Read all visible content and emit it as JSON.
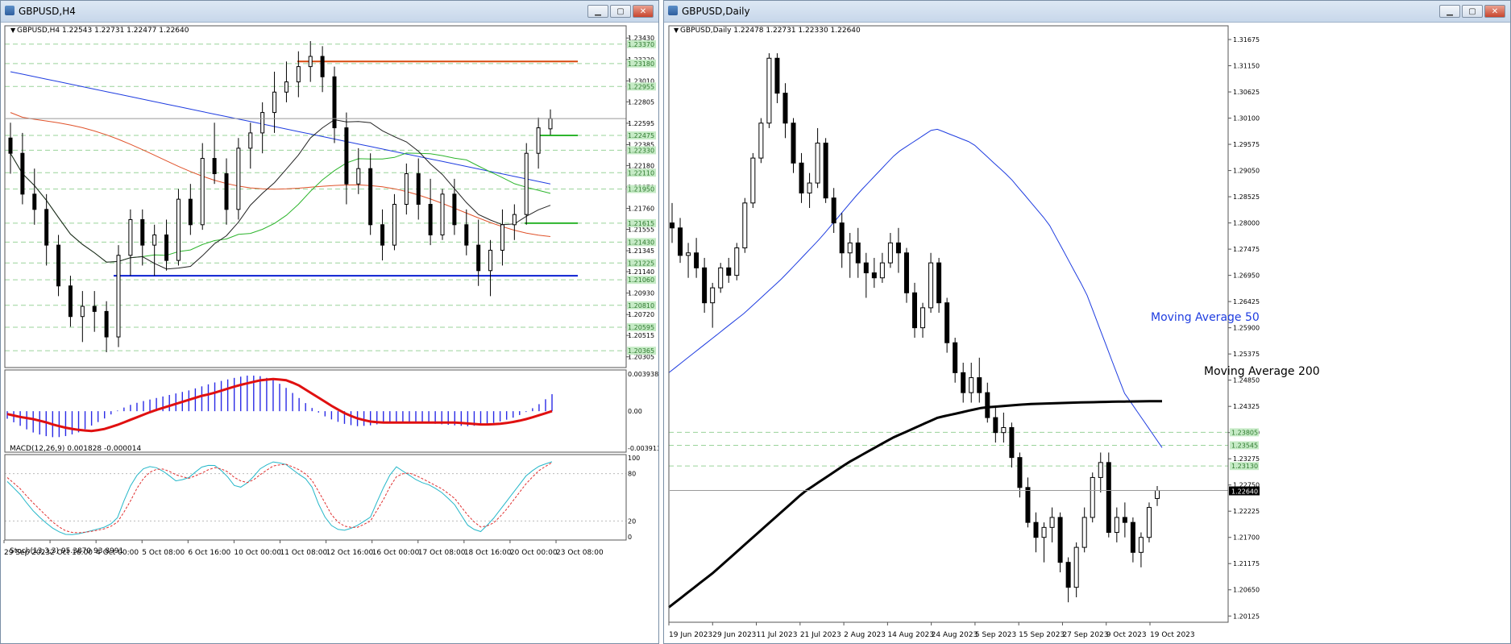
{
  "left": {
    "title": "GBPUSD,H4",
    "info": "GBPUSD,H4  1.22543 1.22731 1.22477 1.22640",
    "price_ticks": [
      "1.23430",
      "1.23220",
      "1.23010",
      "1.22805",
      "1.22595",
      "1.22385",
      "1.22180",
      "1.21970",
      "1.21760",
      "1.21555",
      "1.21345",
      "1.21140",
      "1.20930",
      "1.20720",
      "1.20515",
      "1.20305"
    ],
    "level_labels": [
      "1.23370",
      "1.23180",
      "1.22955",
      "1.22475",
      "1.22330",
      "1.22110",
      "1.21950",
      "1.21615",
      "1.21430",
      "1.21225",
      "1.21060",
      "1.20810",
      "1.20595",
      "1.20365"
    ],
    "time_ticks": [
      "29 Sep 2023",
      "2 Oct 16:00",
      "4 Oct 00:00",
      "5 Oct 08:00",
      "6 Oct 16:00",
      "10 Oct 00:00",
      "11 Oct 08:00",
      "12 Oct 16:00",
      "16 Oct 00:00",
      "17 Oct 08:00",
      "18 Oct 16:00",
      "20 Oct 00:00",
      "23 Oct 08:00"
    ],
    "macd_label": "MACD(12,26,9) 0.001828 -0.000014",
    "macd_ticks": [
      "0.003938",
      "0.00",
      "-0.003913"
    ],
    "stoch_label": "Stoch(13,3,3) 95.3870 93.8991",
    "stoch_ticks": [
      "100",
      "80",
      "20",
      "0"
    ]
  },
  "right": {
    "title": "GBPUSD,Daily",
    "info": "GBPUSD,Daily  1.22478 1.22731 1.22330 1.22640",
    "price_ticks": [
      "1.31675",
      "1.31150",
      "1.30625",
      "1.30100",
      "1.29575",
      "1.29050",
      "1.28525",
      "1.28000",
      "1.27475",
      "1.26950",
      "1.26425",
      "1.25900",
      "1.25375",
      "1.24850",
      "1.24325",
      "1.23800",
      "1.23275",
      "1.22750",
      "1.22225",
      "1.21700",
      "1.21175",
      "1.20650",
      "1.20125"
    ],
    "level_labels": [
      "1.23805",
      "1.23545",
      "1.23130"
    ],
    "current_price": "1.22640",
    "time_ticks": [
      "19 Jun 2023",
      "29 Jun 2023",
      "11 Jul 2023",
      "21 Jul 2023",
      "2 Aug 2023",
      "14 Aug 2023",
      "24 Aug 2023",
      "5 Sep 2023",
      "15 Sep 2023",
      "27 Sep 2023",
      "9 Oct 2023",
      "19 Oct 2023"
    ],
    "annotations": {
      "ma50": "Moving Average 50",
      "ma200": "Moving Average 200"
    }
  },
  "window_buttons": {
    "minimize": "▁",
    "restore": "▢",
    "close": "✕"
  },
  "colors": {
    "ma_blue": "#1f3de0",
    "ma_red": "#e0522a",
    "ma_green": "#2db52d",
    "resistance": "#d9480f",
    "support": "#0a1fd1",
    "grid": "#9ad39a",
    "macd_hist": "#2a2ae6",
    "macd_signal": "#e01010"
  },
  "chart_data": [
    {
      "type": "candlestick",
      "title": "GBPUSD,H4",
      "ylim": [
        1.202,
        1.2355
      ],
      "horizontal_lines": [
        {
          "price": 1.232,
          "color": "#d9480f"
        },
        {
          "price": 1.211,
          "color": "#0a1fd1"
        },
        {
          "price": 1.22475,
          "color": "#2db52d"
        },
        {
          "price": 1.21615,
          "color": "#2db52d"
        }
      ],
      "candles_ohlc": [
        [
          1.2245,
          1.226,
          1.221,
          1.223
        ],
        [
          1.223,
          1.225,
          1.218,
          1.219
        ],
        [
          1.219,
          1.2215,
          1.216,
          1.2175
        ],
        [
          1.2175,
          1.219,
          1.212,
          1.214
        ],
        [
          1.214,
          1.215,
          1.209,
          1.21
        ],
        [
          1.21,
          1.211,
          1.206,
          1.207
        ],
        [
          1.207,
          1.2095,
          1.2045,
          1.208
        ],
        [
          1.208,
          1.2095,
          1.2055,
          1.2075
        ],
        [
          1.2075,
          1.2085,
          1.2035,
          1.205
        ],
        [
          1.205,
          1.214,
          1.204,
          1.213
        ],
        [
          1.213,
          1.2175,
          1.211,
          1.2165
        ],
        [
          1.2165,
          1.2175,
          1.212,
          1.214
        ],
        [
          1.214,
          1.216,
          1.211,
          1.215
        ],
        [
          1.215,
          1.2165,
          1.2115,
          1.2125
        ],
        [
          1.2125,
          1.2195,
          1.212,
          1.2185
        ],
        [
          1.2185,
          1.22,
          1.215,
          1.216
        ],
        [
          1.216,
          1.224,
          1.2155,
          1.2225
        ],
        [
          1.2225,
          1.226,
          1.22,
          1.221
        ],
        [
          1.221,
          1.2225,
          1.216,
          1.2175
        ],
        [
          1.2175,
          1.2245,
          1.2165,
          1.2235
        ],
        [
          1.2235,
          1.226,
          1.2215,
          1.225
        ],
        [
          1.225,
          1.228,
          1.223,
          1.227
        ],
        [
          1.227,
          1.231,
          1.225,
          1.229
        ],
        [
          1.229,
          1.232,
          1.228,
          1.23
        ],
        [
          1.23,
          1.233,
          1.2285,
          1.2315
        ],
        [
          1.2315,
          1.234,
          1.23,
          1.2325
        ],
        [
          1.2325,
          1.2335,
          1.229,
          1.2305
        ],
        [
          1.2305,
          1.2315,
          1.224,
          1.2255
        ],
        [
          1.2255,
          1.227,
          1.218,
          1.22
        ],
        [
          1.22,
          1.2235,
          1.219,
          1.2215
        ],
        [
          1.2215,
          1.223,
          1.215,
          1.216
        ],
        [
          1.216,
          1.2175,
          1.2125,
          1.214
        ],
        [
          1.214,
          1.219,
          1.2135,
          1.218
        ],
        [
          1.218,
          1.222,
          1.217,
          1.221
        ],
        [
          1.221,
          1.2225,
          1.2165,
          1.218
        ],
        [
          1.218,
          1.2205,
          1.214,
          1.215
        ],
        [
          1.215,
          1.2195,
          1.2145,
          1.219
        ],
        [
          1.219,
          1.2205,
          1.215,
          1.216
        ],
        [
          1.216,
          1.2175,
          1.213,
          1.214
        ],
        [
          1.214,
          1.2165,
          1.21,
          1.2115
        ],
        [
          1.2115,
          1.2145,
          1.209,
          1.2135
        ],
        [
          1.2135,
          1.2175,
          1.212,
          1.216
        ],
        [
          1.216,
          1.218,
          1.2145,
          1.217
        ],
        [
          1.217,
          1.224,
          1.216,
          1.223
        ],
        [
          1.223,
          1.2265,
          1.2215,
          1.2255
        ],
        [
          1.2254,
          1.2273,
          1.2248,
          1.2264
        ]
      ]
    },
    {
      "type": "bar",
      "title": "MACD(12,26,9) 0.001828 -0.000014",
      "ylim": [
        -0.003913,
        0.003938
      ],
      "values": [
        -0.0008,
        -0.0015,
        -0.0022,
        -0.0026,
        -0.0028,
        -0.0026,
        -0.0022,
        -0.0015,
        -0.0008,
        0.0,
        0.0006,
        0.001,
        0.0013,
        0.0016,
        0.0019,
        0.0022,
        0.0026,
        0.003,
        0.0033,
        0.0036,
        0.0038,
        0.0037,
        0.0033,
        0.0025,
        0.0015,
        0.0005,
        -0.0004,
        -0.001,
        -0.0014,
        -0.0016,
        -0.0015,
        -0.0013,
        -0.0012,
        -0.0011,
        -0.0012,
        -0.0013,
        -0.0014,
        -0.0015,
        -0.0016,
        -0.0015,
        -0.0013,
        -0.001,
        -0.0006,
        0.0,
        0.0008,
        0.0018
      ],
      "signal": [
        -0.0003,
        -0.0006,
        -0.0008,
        -0.0011,
        -0.0015,
        -0.0018,
        -0.002,
        -0.0021,
        -0.0019,
        -0.0015,
        -0.001,
        -0.0005,
        0.0,
        0.0004,
        0.0008,
        0.0012,
        0.0016,
        0.0019,
        0.0023,
        0.0027,
        0.003,
        0.0033,
        0.0034,
        0.0033,
        0.0028,
        0.002,
        0.0012,
        0.0004,
        -0.0003,
        -0.0008,
        -0.0011,
        -0.0012,
        -0.0012,
        -0.0012,
        -0.0012,
        -0.0012,
        -0.0012,
        -0.0012,
        -0.0013,
        -0.0014,
        -0.0014,
        -0.0013,
        -0.0011,
        -0.0008,
        -0.0004,
        0.0
      ]
    },
    {
      "type": "line",
      "title": "Stoch(13,3,3) 95.3870 93.8991",
      "ylim": [
        0,
        100
      ],
      "series": [
        {
          "name": "main",
          "values": [
            70,
            55,
            35,
            20,
            8,
            2,
            4,
            8,
            12,
            20,
            60,
            85,
            90,
            82,
            70,
            75,
            88,
            92,
            80,
            60,
            70,
            88,
            95,
            92,
            80,
            70,
            30,
            10,
            8,
            15,
            25,
            60,
            90,
            80,
            70,
            65,
            55,
            40,
            15,
            5,
            20,
            40,
            60,
            80,
            90,
            95
          ]
        },
        {
          "name": "signal",
          "values": [
            75,
            62,
            45,
            30,
            15,
            6,
            5,
            7,
            10,
            16,
            40,
            70,
            85,
            86,
            78,
            74,
            80,
            88,
            85,
            72,
            68,
            80,
            90,
            92,
            86,
            76,
            50,
            22,
            12,
            12,
            20,
            45,
            75,
            82,
            76,
            68,
            60,
            48,
            28,
            12,
            15,
            30,
            50,
            70,
            85,
            94
          ]
        }
      ]
    },
    {
      "type": "candlestick",
      "title": "GBPUSD,Daily",
      "ylim": [
        1.2,
        1.3195
      ],
      "horizontal_lines": [
        {
          "price": 1.23805
        },
        {
          "price": 1.23545
        },
        {
          "price": 1.2313
        }
      ],
      "candles_ohlc": [
        [
          1.28,
          1.284,
          1.276,
          1.279
        ],
        [
          1.279,
          1.281,
          1.272,
          1.2735
        ],
        [
          1.2735,
          1.276,
          1.269,
          1.274
        ],
        [
          1.274,
          1.277,
          1.269,
          1.271
        ],
        [
          1.271,
          1.273,
          1.262,
          1.264
        ],
        [
          1.264,
          1.268,
          1.259,
          1.267
        ],
        [
          1.267,
          1.272,
          1.266,
          1.271
        ],
        [
          1.271,
          1.273,
          1.268,
          1.2695
        ],
        [
          1.2695,
          1.276,
          1.2685,
          1.275
        ],
        [
          1.275,
          1.285,
          1.274,
          1.284
        ],
        [
          1.284,
          1.294,
          1.283,
          1.293
        ],
        [
          1.293,
          1.301,
          1.292,
          1.3
        ],
        [
          1.3,
          1.314,
          1.299,
          1.313
        ],
        [
          1.313,
          1.314,
          1.304,
          1.306
        ],
        [
          1.306,
          1.308,
          1.297,
          1.3
        ],
        [
          1.3,
          1.301,
          1.29,
          1.292
        ],
        [
          1.292,
          1.294,
          1.284,
          1.286
        ],
        [
          1.286,
          1.29,
          1.283,
          1.288
        ],
        [
          1.288,
          1.299,
          1.287,
          1.296
        ],
        [
          1.296,
          1.297,
          1.284,
          1.285
        ],
        [
          1.285,
          1.287,
          1.278,
          1.28
        ],
        [
          1.28,
          1.282,
          1.271,
          1.274
        ],
        [
          1.274,
          1.278,
          1.269,
          1.276
        ],
        [
          1.276,
          1.279,
          1.269,
          1.272
        ],
        [
          1.272,
          1.274,
          1.265,
          1.27
        ],
        [
          1.27,
          1.273,
          1.267,
          1.269
        ],
        [
          1.269,
          1.274,
          1.268,
          1.272
        ],
        [
          1.272,
          1.278,
          1.271,
          1.276
        ],
        [
          1.276,
          1.279,
          1.27,
          1.274
        ],
        [
          1.274,
          1.275,
          1.264,
          1.266
        ],
        [
          1.266,
          1.268,
          1.257,
          1.259
        ],
        [
          1.259,
          1.264,
          1.257,
          1.263
        ],
        [
          1.263,
          1.274,
          1.262,
          1.272
        ],
        [
          1.272,
          1.273,
          1.262,
          1.264
        ],
        [
          1.264,
          1.265,
          1.254,
          1.256
        ],
        [
          1.256,
          1.257,
          1.248,
          1.25
        ],
        [
          1.25,
          1.252,
          1.244,
          1.246
        ],
        [
          1.246,
          1.252,
          1.244,
          1.249
        ],
        [
          1.249,
          1.253,
          1.244,
          1.246
        ],
        [
          1.246,
          1.248,
          1.24,
          1.241
        ],
        [
          1.241,
          1.243,
          1.236,
          1.238
        ],
        [
          1.238,
          1.242,
          1.236,
          1.239
        ],
        [
          1.239,
          1.24,
          1.231,
          1.233
        ],
        [
          1.233,
          1.234,
          1.225,
          1.227
        ],
        [
          1.227,
          1.229,
          1.219,
          1.22
        ],
        [
          1.22,
          1.222,
          1.214,
          1.217
        ],
        [
          1.217,
          1.22,
          1.212,
          1.219
        ],
        [
          1.219,
          1.223,
          1.216,
          1.221
        ],
        [
          1.221,
          1.222,
          1.21,
          1.212
        ],
        [
          1.212,
          1.213,
          1.204,
          1.207
        ],
        [
          1.207,
          1.216,
          1.205,
          1.215
        ],
        [
          1.215,
          1.223,
          1.214,
          1.221
        ],
        [
          1.221,
          1.23,
          1.22,
          1.229
        ],
        [
          1.229,
          1.234,
          1.226,
          1.232
        ],
        [
          1.232,
          1.234,
          1.217,
          1.218
        ],
        [
          1.218,
          1.223,
          1.216,
          1.221
        ],
        [
          1.221,
          1.224,
          1.217,
          1.22
        ],
        [
          1.22,
          1.221,
          1.212,
          1.214
        ],
        [
          1.214,
          1.218,
          1.211,
          1.217
        ],
        [
          1.217,
          1.224,
          1.216,
          1.223
        ],
        [
          1.2248,
          1.2273,
          1.2233,
          1.2264
        ]
      ],
      "series": [
        {
          "name": "Moving Average 50",
          "values": [
            1.25,
            1.256,
            1.262,
            1.269,
            1.277,
            1.286,
            1.294,
            1.299,
            1.296,
            1.289,
            1.28,
            1.266,
            1.246,
            1.235
          ]
        },
        {
          "name": "Moving Average 200",
          "values": [
            1.203,
            1.21,
            1.218,
            1.226,
            1.232,
            1.237,
            1.241,
            1.243,
            1.2437,
            1.244,
            1.2442,
            1.2443
          ]
        }
      ]
    }
  ]
}
